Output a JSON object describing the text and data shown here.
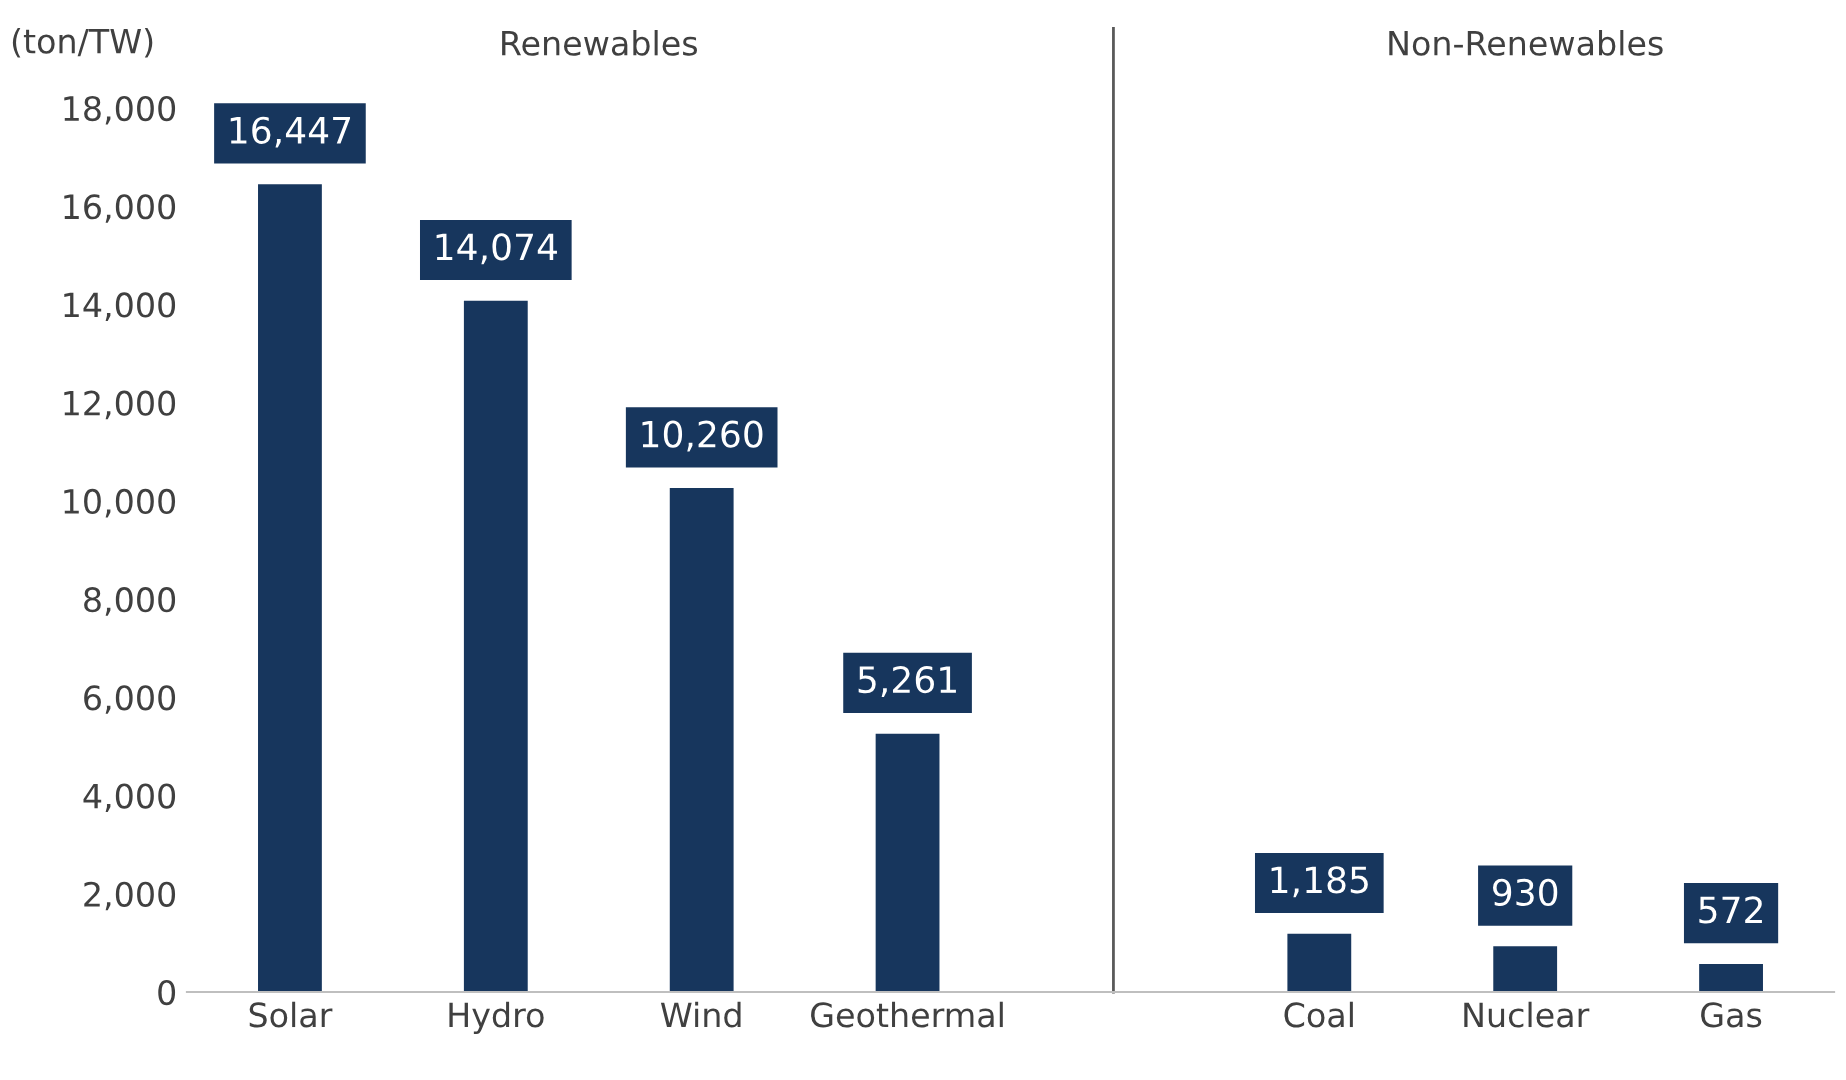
{
  "chart_data": {
    "type": "bar",
    "ylabel": "(ton/TW)",
    "categories": [
      "Solar",
      "Hydro",
      "Wind",
      "Geothermal",
      null,
      "Coal",
      "Nuclear",
      "Gas"
    ],
    "values": [
      16447,
      14074,
      10260,
      5261,
      null,
      1185,
      930,
      572
    ],
    "value_labels": [
      "16,447",
      "14,074",
      "10,260",
      "5,261",
      null,
      "1,185",
      "930",
      "572"
    ],
    "color": "#17365d",
    "ylim": [
      0,
      18000
    ],
    "yticks": [
      0,
      {
        "value": 2000,
        "label": "2,000"
      },
      {
        "value": 4000,
        "label": "4,000"
      },
      {
        "value": 6000,
        "label": "6,000"
      },
      {
        "value": 8000,
        "label": "8,000"
      },
      {
        "value": 10000,
        "label": "10,000"
      },
      {
        "value": 12000,
        "label": "12,000"
      },
      {
        "value": 14000,
        "label": "14,000"
      },
      {
        "value": 16000,
        "label": "16,000"
      },
      {
        "value": 18000,
        "label": "18,000"
      }
    ],
    "annotations": [
      "Renewables",
      "Non-Renewables"
    ]
  }
}
